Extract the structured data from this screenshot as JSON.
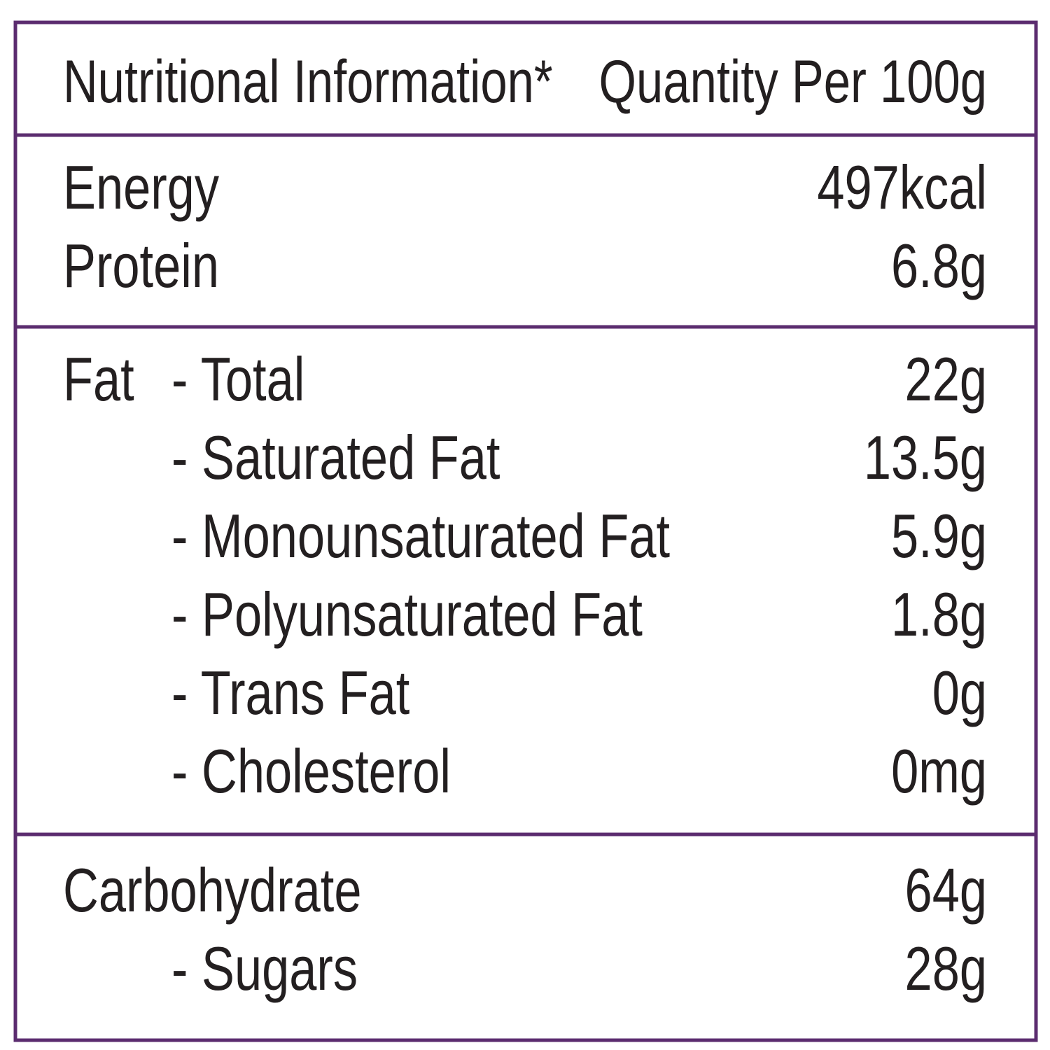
{
  "header": {
    "title": "Nutritional Information*",
    "quantity": "Quantity Per 100g"
  },
  "sections": [
    {
      "rows": [
        {
          "label": "Energy",
          "value": "497kcal"
        },
        {
          "label": "Protein",
          "value": "6.8g"
        }
      ]
    },
    {
      "rows": [
        {
          "prefix": "Fat",
          "label": "- Total",
          "value": "22g"
        },
        {
          "label": "- Saturated Fat",
          "value": "13.5g"
        },
        {
          "label": "- Monounsaturated Fat",
          "value": "5.9g"
        },
        {
          "label": "- Polyunsaturated Fat",
          "value": "1.8g"
        },
        {
          "label": "- Trans Fat",
          "value": "0g"
        },
        {
          "label": "- Cholesterol",
          "value": "0mg"
        }
      ]
    },
    {
      "rows": [
        {
          "label": "Carbohydrate",
          "value": "64g"
        },
        {
          "label": "- Sugars",
          "value": "28g"
        }
      ]
    }
  ]
}
